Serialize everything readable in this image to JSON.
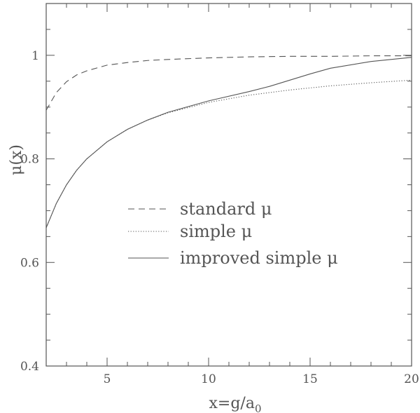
{
  "chart_data": {
    "type": "line",
    "title": "",
    "xlabel": "x=g/a",
    "xlabel_subscript": "0",
    "ylabel": "μ(x)",
    "xlim": [
      2,
      20
    ],
    "ylim": [
      0.4,
      1.1
    ],
    "x_ticks": [
      5,
      10,
      15,
      20
    ],
    "y_ticks": [
      0.4,
      0.6,
      0.8,
      1
    ],
    "x_tick_labels": [
      "5",
      "10",
      "15",
      "20"
    ],
    "y_tick_labels": [
      "0.4",
      "0.6",
      "0.8",
      "1"
    ],
    "grid": false,
    "legend_position": "center-left",
    "series": [
      {
        "name": "standard μ",
        "style": "dashed",
        "color": "#555555",
        "x": [
          2,
          2.5,
          3,
          3.5,
          4,
          5,
          6,
          7,
          8,
          10,
          12,
          14,
          16,
          18,
          20
        ],
        "y": [
          0.894,
          0.928,
          0.949,
          0.962,
          0.97,
          0.981,
          0.986,
          0.99,
          0.992,
          0.995,
          0.997,
          0.998,
          0.998,
          0.999,
          0.999
        ]
      },
      {
        "name": "simple μ",
        "style": "dotted",
        "color": "#555555",
        "x": [
          2,
          2.5,
          3,
          3.5,
          4,
          5,
          6,
          7,
          8,
          10,
          12,
          14,
          16,
          18,
          20
        ],
        "y": [
          0.667,
          0.714,
          0.75,
          0.778,
          0.8,
          0.833,
          0.857,
          0.875,
          0.889,
          0.909,
          0.923,
          0.933,
          0.941,
          0.947,
          0.952
        ]
      },
      {
        "name": "improved simple μ",
        "style": "solid",
        "color": "#555555",
        "x": [
          2,
          2.5,
          3,
          3.5,
          4,
          5,
          6,
          7,
          8,
          10,
          12,
          13,
          14,
          15,
          16,
          18,
          20
        ],
        "y": [
          0.667,
          0.714,
          0.75,
          0.778,
          0.8,
          0.833,
          0.857,
          0.875,
          0.89,
          0.912,
          0.93,
          0.94,
          0.952,
          0.964,
          0.975,
          0.988,
          0.996
        ]
      }
    ]
  }
}
